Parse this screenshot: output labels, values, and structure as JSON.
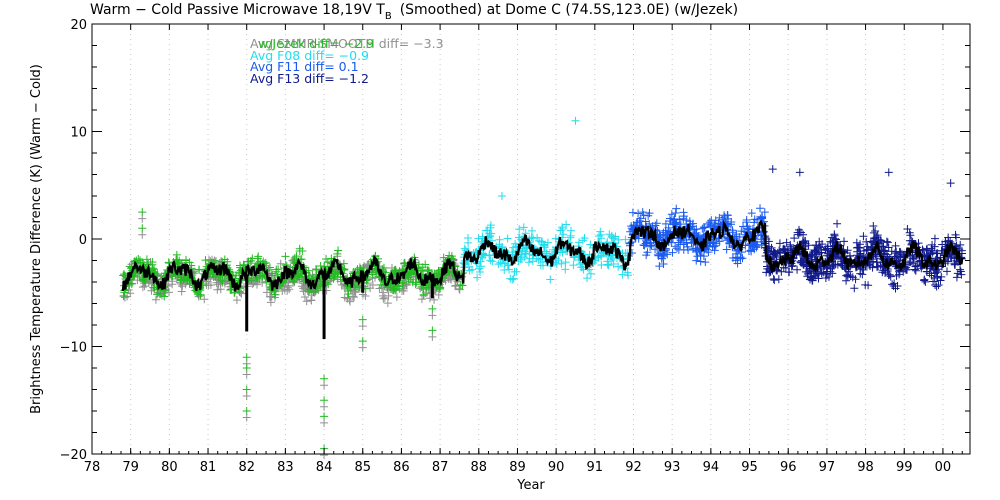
{
  "chart_data": {
    "type": "scatter",
    "title_prefix": "Warm − Cold Passive Microwave 18,19V T",
    "title_subscript": "B",
    "title_suffix": "(Smoothed) at Dome C (74.5S,123.0E) (w/Jezek)",
    "xlabel": "Year",
    "ylabel": "Brightness Temperature Difference (K) (Warm − Cold)",
    "xlim": [
      78,
      100.7
    ],
    "ylim": [
      -20,
      20
    ],
    "x_ticks": [
      "78",
      "79",
      "80",
      "81",
      "82",
      "83",
      "84",
      "85",
      "86",
      "87",
      "88",
      "89",
      "90",
      "91",
      "92",
      "93",
      "94",
      "95",
      "96",
      "97",
      "98",
      "99",
      "00"
    ],
    "y_ticks": [
      20,
      10,
      0,
      -10,
      -20
    ],
    "vertical_gridlines": "dotted at each year",
    "series": [
      {
        "name": "w/Jezek SMMR",
        "color": "#909090",
        "x_range": [
          78.8,
          87.6
        ],
        "baseline": -3.8,
        "spread": 1.2
      },
      {
        "name": "SMMR",
        "color": "#22bb22",
        "x_range": [
          78.8,
          87.6
        ],
        "baseline": -3.3,
        "spread": 1.2
      },
      {
        "name": "F08",
        "color": "#22ddee",
        "x_range": [
          87.6,
          91.9
        ],
        "baseline": -1.2,
        "spread": 1.6
      },
      {
        "name": "F11",
        "color": "#1a5aee",
        "x_range": [
          91.9,
          95.4
        ],
        "baseline": 0.2,
        "spread": 1.6
      },
      {
        "name": "F13",
        "color": "#101a8a",
        "x_range": [
          95.4,
          100.5
        ],
        "baseline": -1.8,
        "spread": 1.8
      },
      {
        "name": "smoothed",
        "color": "#000000",
        "x_range": [
          78.8,
          100.5
        ]
      }
    ],
    "outliers": [
      {
        "x": 79.3,
        "y": 2.5
      },
      {
        "x": 79.3,
        "y": 1.0
      },
      {
        "x": 82.0,
        "y": -11.0
      },
      {
        "x": 82.0,
        "y": -12.0
      },
      {
        "x": 82.0,
        "y": -14.0
      },
      {
        "x": 82.0,
        "y": -16.0
      },
      {
        "x": 84.0,
        "y": -13.0
      },
      {
        "x": 84.0,
        "y": -15.0
      },
      {
        "x": 84.0,
        "y": -16.5
      },
      {
        "x": 84.0,
        "y": -19.5
      },
      {
        "x": 85.0,
        "y": -7.5
      },
      {
        "x": 85.0,
        "y": -9.5
      },
      {
        "x": 86.8,
        "y": -6.5
      },
      {
        "x": 86.8,
        "y": -8.5
      },
      {
        "x": 90.5,
        "y": 11.0
      },
      {
        "x": 88.6,
        "y": 4.0
      },
      {
        "x": 95.6,
        "y": 6.5
      },
      {
        "x": 96.3,
        "y": 6.2
      },
      {
        "x": 98.6,
        "y": 6.2
      },
      {
        "x": 100.2,
        "y": 5.2
      }
    ],
    "spikes": [
      {
        "x": 82.0,
        "y": -8.6
      },
      {
        "x": 84.0,
        "y": -9.3
      },
      {
        "x": 85.0,
        "y": -5.0
      },
      {
        "x": 86.8,
        "y": -5.5
      }
    ],
    "legend": [
      {
        "text": "Avg SMMR-SMOOTH diff=  −3.3",
        "color": "#909090"
      },
      {
        "text": "w/Jezek diff=  −2.9",
        "color": "#22bb22"
      },
      {
        "text": "Avg F08 diff=  −0.9",
        "color": "#22ddee"
      },
      {
        "text": "Avg F11 diff=   0.1",
        "color": "#1a5aee"
      },
      {
        "text": "Avg F13 diff=  −1.2",
        "color": "#101a8a"
      }
    ]
  }
}
